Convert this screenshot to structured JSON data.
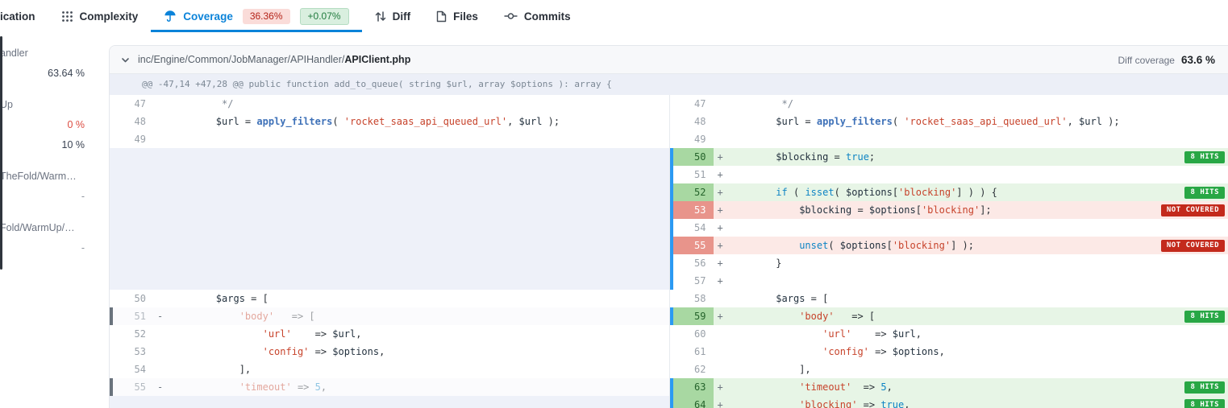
{
  "nav": {
    "tabs": [
      {
        "label": "ication"
      },
      {
        "label": "Complexity",
        "icon": "grid-icon"
      },
      {
        "label": "Coverage",
        "icon": "umbrella-icon",
        "active": true,
        "badges": [
          {
            "text": "36.36%",
            "kind": "red"
          },
          {
            "text": "+0.07%",
            "kind": "green"
          }
        ]
      },
      {
        "label": "Diff",
        "icon": "diff-icon"
      },
      {
        "label": "Files",
        "icon": "files-icon"
      },
      {
        "label": "Commits",
        "icon": "commits-icon"
      }
    ]
  },
  "sidebar": {
    "items": [
      {
        "label": "andler",
        "stats": [
          {
            "text": "63.64 %",
            "tone": "dark"
          }
        ]
      },
      {
        "label": "Up",
        "stats": [
          {
            "text": "0 %",
            "tone": "red"
          },
          {
            "text": "10 %",
            "tone": "dark"
          }
        ]
      },
      {
        "label": "TheFold/Warm…",
        "stats": [
          {
            "text": "-",
            "tone": "muted"
          }
        ]
      },
      {
        "label": "Fold/WarmUp/…",
        "stats": [
          {
            "text": "-",
            "tone": "muted"
          }
        ]
      }
    ]
  },
  "file": {
    "path_prefix": "inc/Engine/Common/JobManager/APIHandler/",
    "name": "APIClient.php",
    "diff_coverage_label": "Diff coverage",
    "diff_coverage_value": "63.6 %",
    "hunk": "@@ -47,14 +47,28 @@ public function add_to_queue( string $url, array $options ): array {"
  },
  "badges": {
    "hits": "8 HITS",
    "not_covered": "NOT COVERED"
  },
  "colors": {
    "accent_blue": "#0b83d9",
    "coverage_badge_bg": "#fadcd9",
    "coverage_badge_text": "#b42318",
    "delta_badge_bg": "#d9efdf",
    "delta_badge_text": "#1f7a3d",
    "added_strip": "#2b9af3",
    "removed_strip": "#6a737d",
    "hit_badge": "#28a745",
    "miss_badge": "#c32a1c"
  },
  "icons": [
    "grid-icon",
    "umbrella-icon",
    "diff-icon",
    "files-icon",
    "commits-icon",
    "chevron-down-icon"
  ],
  "diff": {
    "markers": {
      "add": "+",
      "del": "-"
    },
    "rows": [
      {
        "l": {
          "n": "47",
          "t": "ctx",
          "tok": [
            [
              "c",
              "         */"
            ]
          ]
        },
        "r": {
          "n": "47",
          "t": "ctx",
          "tok": [
            [
              "c",
              "         */"
            ]
          ]
        }
      },
      {
        "l": {
          "n": "48",
          "t": "ctx",
          "tok": [
            [
              "p",
              "        "
            ],
            [
              "v",
              "$url"
            ],
            [
              "p",
              " = "
            ],
            [
              "f",
              "apply_filters"
            ],
            [
              "p",
              "( "
            ],
            [
              "s",
              "'rocket_saas_api_queued_url'"
            ],
            [
              "p",
              ", "
            ],
            [
              "v",
              "$url"
            ],
            [
              "p",
              " );"
            ]
          ]
        },
        "r": {
          "n": "48",
          "t": "ctx",
          "tok": [
            [
              "p",
              "        "
            ],
            [
              "v",
              "$url"
            ],
            [
              "p",
              " = "
            ],
            [
              "f",
              "apply_filters"
            ],
            [
              "p",
              "( "
            ],
            [
              "s",
              "'rocket_saas_api_queued_url'"
            ],
            [
              "p",
              ", "
            ],
            [
              "v",
              "$url"
            ],
            [
              "p",
              " );"
            ]
          ]
        }
      },
      {
        "l": {
          "n": "49",
          "t": "ctx",
          "tok": []
        },
        "r": {
          "n": "49",
          "t": "ctx",
          "tok": []
        }
      },
      {
        "l": {
          "t": "filler"
        },
        "r": {
          "n": "50",
          "t": "add",
          "cov": "hit",
          "tok": [
            [
              "p",
              "        "
            ],
            [
              "v",
              "$blocking"
            ],
            [
              "p",
              " = "
            ],
            [
              "k",
              "true"
            ],
            [
              "p",
              ";"
            ]
          ]
        }
      },
      {
        "l": {
          "t": "filler"
        },
        "r": {
          "n": "51",
          "t": "add",
          "tok": []
        }
      },
      {
        "l": {
          "t": "filler"
        },
        "r": {
          "n": "52",
          "t": "add",
          "cov": "hit",
          "tok": [
            [
              "p",
              "        "
            ],
            [
              "k",
              "if"
            ],
            [
              "p",
              " ( "
            ],
            [
              "b",
              "isset"
            ],
            [
              "p",
              "( "
            ],
            [
              "v",
              "$options"
            ],
            [
              "p",
              "["
            ],
            [
              "s",
              "'blocking'"
            ],
            [
              "p",
              "] ) ) {"
            ]
          ]
        }
      },
      {
        "l": {
          "t": "filler"
        },
        "r": {
          "n": "53",
          "t": "add",
          "cov": "miss",
          "tok": [
            [
              "p",
              "            "
            ],
            [
              "v",
              "$blocking"
            ],
            [
              "p",
              " = "
            ],
            [
              "v",
              "$options"
            ],
            [
              "p",
              "["
            ],
            [
              "s",
              "'blocking'"
            ],
            [
              "p",
              "];"
            ]
          ]
        }
      },
      {
        "l": {
          "t": "filler"
        },
        "r": {
          "n": "54",
          "t": "add",
          "tok": []
        }
      },
      {
        "l": {
          "t": "filler"
        },
        "r": {
          "n": "55",
          "t": "add",
          "cov": "miss",
          "tok": [
            [
              "p",
              "            "
            ],
            [
              "b",
              "unset"
            ],
            [
              "p",
              "( "
            ],
            [
              "v",
              "$options"
            ],
            [
              "p",
              "["
            ],
            [
              "s",
              "'blocking'"
            ],
            [
              "p",
              "] );"
            ]
          ]
        }
      },
      {
        "l": {
          "t": "filler"
        },
        "r": {
          "n": "56",
          "t": "add",
          "tok": [
            [
              "p",
              "        }"
            ]
          ]
        }
      },
      {
        "l": {
          "t": "filler"
        },
        "r": {
          "n": "57",
          "t": "add",
          "tok": []
        }
      },
      {
        "l": {
          "n": "50",
          "t": "ctx",
          "tok": [
            [
              "p",
              "        "
            ],
            [
              "v",
              "$args"
            ],
            [
              "p",
              " = ["
            ]
          ]
        },
        "r": {
          "n": "58",
          "t": "ctx",
          "tok": [
            [
              "p",
              "        "
            ],
            [
              "v",
              "$args"
            ],
            [
              "p",
              " = ["
            ]
          ]
        }
      },
      {
        "l": {
          "n": "51",
          "t": "del",
          "tok": [
            [
              "p",
              "            "
            ],
            [
              "s",
              "'body'"
            ],
            [
              "p",
              "   => ["
            ]
          ]
        },
        "r": {
          "n": "59",
          "t": "add",
          "cov": "hit",
          "tok": [
            [
              "p",
              "            "
            ],
            [
              "s",
              "'body'"
            ],
            [
              "p",
              "   => ["
            ]
          ]
        }
      },
      {
        "l": {
          "n": "52",
          "t": "ctx",
          "tok": [
            [
              "p",
              "                "
            ],
            [
              "s",
              "'url'"
            ],
            [
              "p",
              "    => "
            ],
            [
              "v",
              "$url"
            ],
            [
              "p",
              ","
            ]
          ]
        },
        "r": {
          "n": "60",
          "t": "ctx",
          "tok": [
            [
              "p",
              "                "
            ],
            [
              "s",
              "'url'"
            ],
            [
              "p",
              "    => "
            ],
            [
              "v",
              "$url"
            ],
            [
              "p",
              ","
            ]
          ]
        }
      },
      {
        "l": {
          "n": "53",
          "t": "ctx",
          "tok": [
            [
              "p",
              "                "
            ],
            [
              "s",
              "'config'"
            ],
            [
              "p",
              " => "
            ],
            [
              "v",
              "$options"
            ],
            [
              "p",
              ","
            ]
          ]
        },
        "r": {
          "n": "61",
          "t": "ctx",
          "tok": [
            [
              "p",
              "                "
            ],
            [
              "s",
              "'config'"
            ],
            [
              "p",
              " => "
            ],
            [
              "v",
              "$options"
            ],
            [
              "p",
              ","
            ]
          ]
        }
      },
      {
        "l": {
          "n": "54",
          "t": "ctx",
          "tok": [
            [
              "p",
              "            ],"
            ]
          ]
        },
        "r": {
          "n": "62",
          "t": "ctx",
          "tok": [
            [
              "p",
              "            ],"
            ]
          ]
        }
      },
      {
        "l": {
          "n": "55",
          "t": "del",
          "tok": [
            [
              "p",
              "            "
            ],
            [
              "s",
              "'timeout'"
            ],
            [
              "p",
              " => "
            ],
            [
              "n",
              "5"
            ],
            [
              "p",
              ","
            ]
          ]
        },
        "r": {
          "n": "63",
          "t": "add",
          "cov": "hit",
          "tok": [
            [
              "p",
              "            "
            ],
            [
              "s",
              "'timeout'"
            ],
            [
              "p",
              "  => "
            ],
            [
              "n",
              "5"
            ],
            [
              "p",
              ","
            ]
          ]
        }
      },
      {
        "l": {
          "t": "filler"
        },
        "r": {
          "n": "64",
          "t": "add",
          "cov": "hit",
          "tok": [
            [
              "p",
              "            "
            ],
            [
              "s",
              "'blocking'"
            ],
            [
              "p",
              " => "
            ],
            [
              "k",
              "true"
            ],
            [
              "p",
              ","
            ]
          ]
        }
      }
    ]
  }
}
